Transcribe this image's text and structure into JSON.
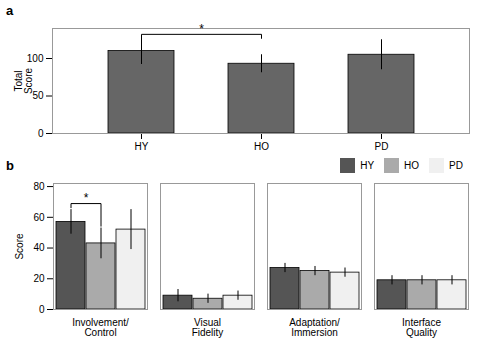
{
  "chart_data": [
    {
      "type": "bar",
      "title": "a",
      "categories": [
        "HY",
        "HO",
        "PD"
      ],
      "values": [
        110,
        93,
        105
      ],
      "errors": [
        18,
        12,
        20
      ],
      "color": "#666666",
      "ylabel": "Total\nScore",
      "ylim": [
        0,
        140
      ],
      "yticks": [
        0,
        50,
        100
      ],
      "grid": false,
      "annotations": [
        {
          "text": "*",
          "from": "HY",
          "to": "HO"
        }
      ]
    },
    {
      "type": "bar",
      "title": "b",
      "categories": [
        "Involvement/\nControl",
        "Visual\nFidelity",
        "Adaptation/\nImmersion",
        "Interface\nQuality"
      ],
      "series": [
        {
          "name": "HY",
          "color": "#555555",
          "values": [
            57,
            9,
            27,
            19
          ],
          "errors": [
            8,
            4,
            3,
            3
          ]
        },
        {
          "name": "HO",
          "color": "#aaaaaa",
          "values": [
            43,
            7,
            25,
            19
          ],
          "errors": [
            10,
            3,
            3,
            3
          ]
        },
        {
          "name": "PD",
          "color": "#f0f0f0",
          "values": [
            52,
            9,
            24,
            19
          ],
          "errors": [
            13,
            3,
            3,
            3
          ]
        }
      ],
      "ylabel": "Score",
      "ylim": [
        0,
        82
      ],
      "yticks": [
        0,
        20,
        40,
        60,
        80
      ],
      "grid": false,
      "legend": "upper right",
      "annotations": [
        {
          "text": "*",
          "category": "Involvement/\nControl",
          "from": "HY",
          "to": "HO"
        }
      ]
    }
  ]
}
